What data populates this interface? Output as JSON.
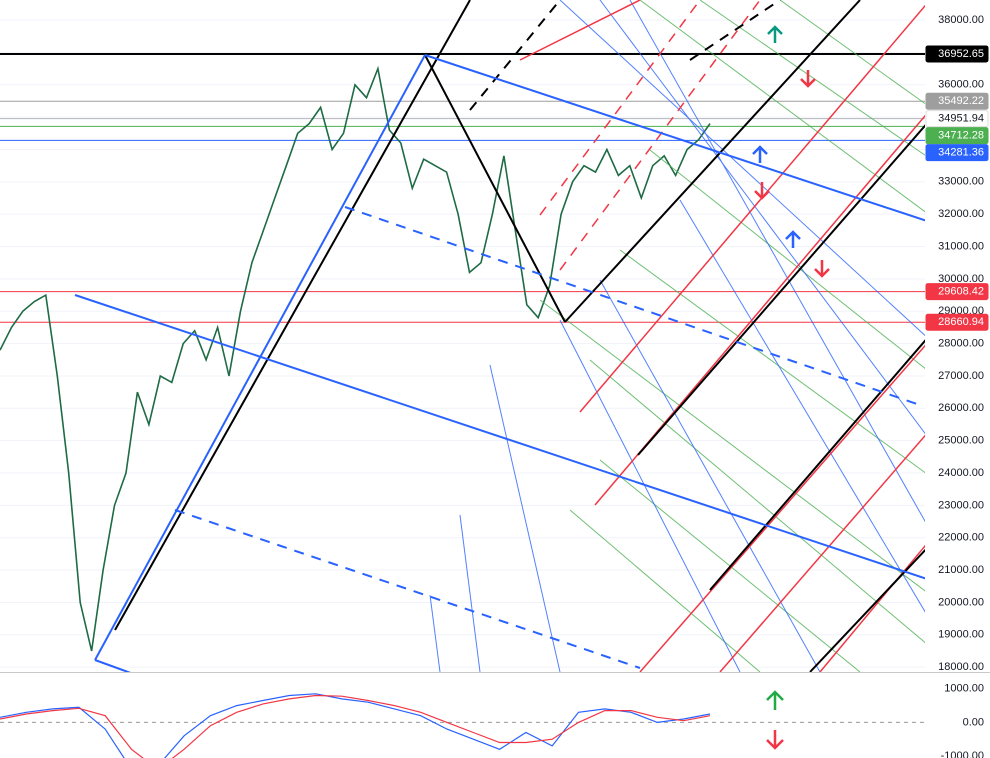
{
  "chart_data": [
    {
      "type": "line",
      "ylim": [
        17850,
        38620
      ],
      "yticks": [
        {
          "value": 18000,
          "label": "18000.00"
        },
        {
          "value": 19000,
          "label": "19000.00"
        },
        {
          "value": 20000,
          "label": "20000.00"
        },
        {
          "value": 21000,
          "label": "21000.00"
        },
        {
          "value": 22000,
          "label": "22000.00"
        },
        {
          "value": 23000,
          "label": "23000.00"
        },
        {
          "value": 24000,
          "label": "24000.00"
        },
        {
          "value": 25000,
          "label": "25000.00"
        },
        {
          "value": 26000,
          "label": "26000.00"
        },
        {
          "value": 27000,
          "label": "27000.00"
        },
        {
          "value": 28000,
          "label": "28000.00"
        },
        {
          "value": 29000,
          "label": "29000.00"
        },
        {
          "value": 30000,
          "label": "30000.00"
        },
        {
          "value": 31000,
          "label": "31000.00"
        },
        {
          "value": 32000,
          "label": "32000.00"
        },
        {
          "value": 33000,
          "label": "33000.00"
        },
        {
          "value": 34000,
          "label": "34000.00"
        },
        {
          "value": 35000,
          "label": "35000.00"
        },
        {
          "value": 36000,
          "label": "36000.00"
        },
        {
          "value": 37000,
          "label": "37000.00"
        },
        {
          "value": 38000,
          "label": "38000.00"
        }
      ],
      "grid": true,
      "levels": [
        {
          "value": 36952.65,
          "color": "#000000"
        },
        {
          "value": 35492.22,
          "color": "#9e9e9e"
        },
        {
          "value": 34951.94,
          "color": "#ffffff"
        },
        {
          "value": 34712.28,
          "color": "#4caf50"
        },
        {
          "value": 34281.36,
          "color": "#2962ff"
        },
        {
          "value": 29608.42,
          "color": "#f23645"
        },
        {
          "value": 28660.94,
          "color": "#f23645"
        }
      ],
      "series": [
        {
          "color": "#1e6b45",
          "values": [
            27800,
            28500,
            29000,
            29300,
            29500,
            27000,
            24000,
            20000,
            18500,
            21000,
            23000,
            24000,
            26500,
            25500,
            27000,
            26800,
            28000,
            28400,
            27500,
            28500,
            27000,
            29000,
            30500,
            31500,
            32500,
            33500,
            34500,
            34800,
            35300,
            34000,
            34500,
            36000,
            35600,
            36500,
            34600,
            34200,
            32800,
            33700,
            33500,
            33300,
            32000,
            30200,
            30500,
            32000,
            33800,
            31500,
            29200,
            28800,
            29800,
            32000,
            33000,
            33500,
            33300,
            34000,
            33200,
            33500,
            32500,
            33500,
            33800,
            33200,
            34000,
            34300,
            34800
          ]
        }
      ]
    },
    {
      "type": "line",
      "ylim": [
        -1060,
        1470
      ],
      "yticks": [
        {
          "value": 1000,
          "label": "1000.00"
        },
        {
          "value": 0,
          "label": "0.00"
        },
        {
          "value": -1000,
          "label": "-1000.00"
        }
      ],
      "series": [
        {
          "color": "#2962ff",
          "values": [
            150,
            300,
            400,
            450,
            -200,
            -1400,
            -1300,
            -400,
            200,
            500,
            650,
            800,
            850,
            700,
            600,
            400,
            200,
            -200,
            -500,
            -800,
            -300,
            -700,
            300,
            400,
            300,
            0,
            100,
            250
          ]
        },
        {
          "color": "#f23645",
          "values": [
            100,
            250,
            350,
            420,
            200,
            -800,
            -1400,
            -800,
            -100,
            300,
            550,
            700,
            800,
            780,
            650,
            500,
            300,
            0,
            -300,
            -600,
            -600,
            -500,
            0,
            350,
            350,
            150,
            50,
            200
          ]
        }
      ]
    }
  ]
}
